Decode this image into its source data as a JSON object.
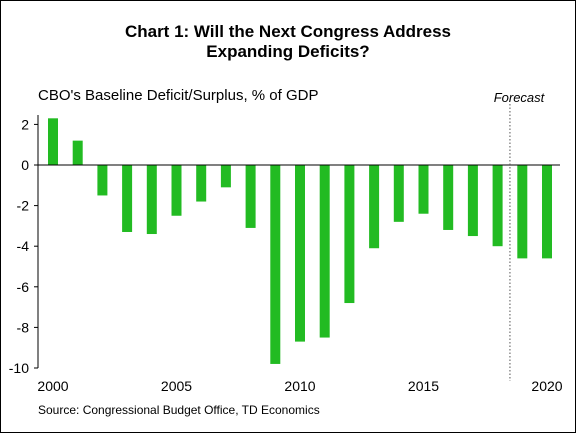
{
  "chart_data": {
    "type": "bar",
    "title": "Chart 1: Will the Next Congress Address Expanding Deficits?",
    "title_lines": [
      "Chart 1: Will the Next Congress Address",
      "Expanding Deficits?"
    ],
    "subtitle": "CBO's Baseline Deficit/Surplus, % of GDP",
    "annotation": "Forecast",
    "source": "Source: Congressional Budget Office, TD Economics",
    "xlabel": "",
    "ylabel": "",
    "x": [
      2000,
      2001,
      2002,
      2003,
      2004,
      2005,
      2006,
      2007,
      2008,
      2009,
      2010,
      2011,
      2012,
      2013,
      2014,
      2015,
      2016,
      2017,
      2018,
      2019,
      2020
    ],
    "values": [
      2.3,
      1.2,
      -1.5,
      -3.3,
      -3.4,
      -2.5,
      -1.8,
      -1.1,
      -3.1,
      -9.8,
      -8.7,
      -8.5,
      -6.8,
      -4.1,
      -2.8,
      -2.4,
      -3.2,
      -3.5,
      -4.0,
      -4.6,
      -4.6
    ],
    "x_ticks": [
      "2000",
      "2005",
      "2010",
      "2015",
      "2020"
    ],
    "y_ticks": [
      "2",
      "0",
      "-2",
      "-4",
      "-6",
      "-8",
      "-10"
    ],
    "ylim": [
      -10,
      3
    ],
    "forecast_from": 2019,
    "bar_color": "#22bb22",
    "grid": false,
    "legend": "none"
  }
}
